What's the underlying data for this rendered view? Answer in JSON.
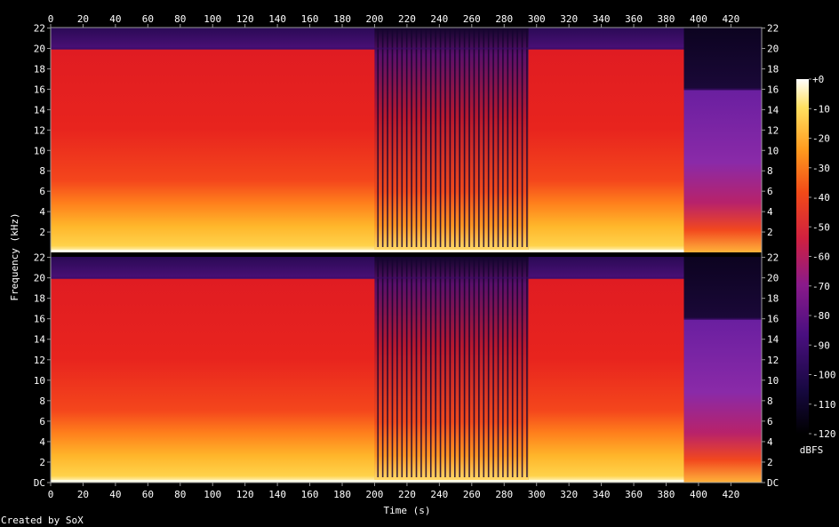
{
  "chart_data": {
    "type": "heatmap",
    "title": "",
    "xlabel": "Time (s)",
    "ylabel": "Frequency (kHz)",
    "colorbar_unit": "dBFS",
    "credit": "Created by SoX",
    "x_ticks": [
      0,
      20,
      40,
      60,
      80,
      100,
      120,
      140,
      160,
      180,
      200,
      220,
      240,
      260,
      280,
      300,
      320,
      340,
      360,
      380,
      400,
      420
    ],
    "x_range": [
      0,
      439
    ],
    "y_ticks_top": [
      "2",
      "4",
      "6",
      "8",
      "10",
      "12",
      "14",
      "16",
      "18",
      "20",
      "22"
    ],
    "y_ticks_bottom": [
      "DC",
      "2",
      "4",
      "6",
      "8",
      "10",
      "12",
      "14",
      "16",
      "18",
      "20",
      "22"
    ],
    "y_range_khz": [
      0,
      22.05
    ],
    "colorbar_ticks": [
      "+0",
      "-10",
      "-20",
      "-30",
      "-40",
      "-50",
      "-60",
      "-70",
      "-80",
      "-90",
      "-100",
      "-110",
      "-120"
    ],
    "colorbar_range_db": [
      -120,
      0
    ],
    "channels": 2,
    "segments": [
      {
        "start_s": 0,
        "end_s": 200,
        "cutoff_khz": 20,
        "level": "dense"
      },
      {
        "start_s": 200,
        "end_s": 295,
        "cutoff_khz": 20,
        "level": "pulsed"
      },
      {
        "start_s": 295,
        "end_s": 391,
        "cutoff_khz": 20,
        "level": "dense"
      },
      {
        "start_s": 391,
        "end_s": 439,
        "cutoff_khz": 16,
        "level": "fade"
      }
    ]
  }
}
